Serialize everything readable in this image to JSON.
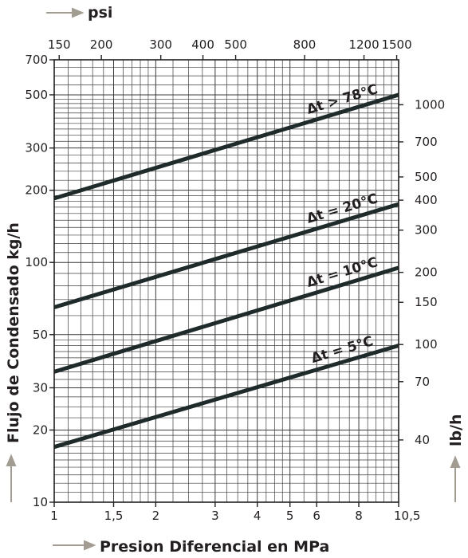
{
  "chart_data": {
    "type": "line",
    "title": "",
    "xlabel": "Presion Diferencial en MPa",
    "ylabel": "Flujo de Condensado kg/h",
    "x2label": "psi",
    "y2label": "lb/h",
    "x_scale": "log",
    "y_scale": "log",
    "xlim": [
      1,
      10.5
    ],
    "ylim": [
      10,
      700
    ],
    "x2lim": [
      145,
      1520
    ],
    "y2lim": [
      22,
      1540
    ],
    "grid": true,
    "x_ticks": [
      "1",
      "1,5",
      "2",
      "3",
      "4",
      "5",
      "6",
      "8",
      "10,5"
    ],
    "y_ticks": [
      "10",
      "20",
      "30",
      "50",
      "100",
      "200",
      "300",
      "500",
      "700"
    ],
    "x2_ticks": [
      "150",
      "200",
      "300",
      "400",
      "500",
      "800",
      "1200",
      "1500"
    ],
    "y2_ticks": [
      "40",
      "70",
      "100",
      "150",
      "200",
      "300",
      "400",
      "500",
      "700",
      "1000"
    ],
    "series": [
      {
        "name": "Δt > 78°C",
        "x": [
          1,
          10.5
        ],
        "y": [
          185,
          500
        ]
      },
      {
        "name": "Δt = 20°C",
        "x": [
          1,
          10.5
        ],
        "y": [
          65,
          175
        ]
      },
      {
        "name": "Δt = 10°C",
        "x": [
          1,
          10.5
        ],
        "y": [
          35,
          95
        ]
      },
      {
        "name": "Δt = 5°C",
        "x": [
          1,
          10.5
        ],
        "y": [
          17,
          45
        ]
      }
    ]
  }
}
